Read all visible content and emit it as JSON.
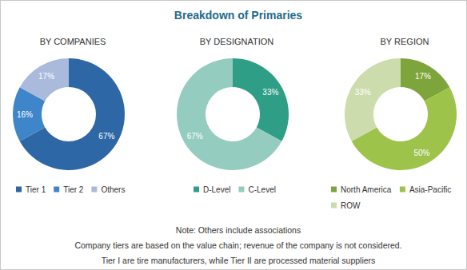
{
  "title": "Breakdown of Primaries",
  "notes": [
    "Note: Others include associations",
    "Company tiers are based on the value chain; revenue of the company is not considered.",
    "Tier I are tire manufacturers, while Tier II are processed material suppliers"
  ],
  "chart_data": [
    {
      "type": "pie",
      "title": "BY COMPANIES",
      "categories": [
        "Tier 1",
        "Tier 2",
        "Others"
      ],
      "values": [
        67,
        16,
        17
      ],
      "value_labels": [
        "67%",
        "16%",
        "17%"
      ],
      "colors": [
        "#2e67a6",
        "#3f85c9",
        "#a9badc"
      ],
      "data_labels": true,
      "legend": "bottom"
    },
    {
      "type": "pie",
      "title": "BY DESIGNATION",
      "categories": [
        "D-Level",
        "C-Level"
      ],
      "values": [
        33,
        67
      ],
      "value_labels": [
        "33%",
        "67%"
      ],
      "colors": [
        "#2f9e86",
        "#94cdbf"
      ],
      "data_labels": true,
      "legend": "bottom"
    },
    {
      "type": "pie",
      "title": "BY REGION",
      "categories": [
        "North America",
        "Asia-Pacific",
        "ROW"
      ],
      "values": [
        17,
        50,
        33
      ],
      "value_labels": [
        "17%",
        "50%",
        "33%"
      ],
      "colors": [
        "#7ea53b",
        "#9dc34a",
        "#cddcad"
      ],
      "data_labels": true,
      "legend": "bottom"
    }
  ]
}
